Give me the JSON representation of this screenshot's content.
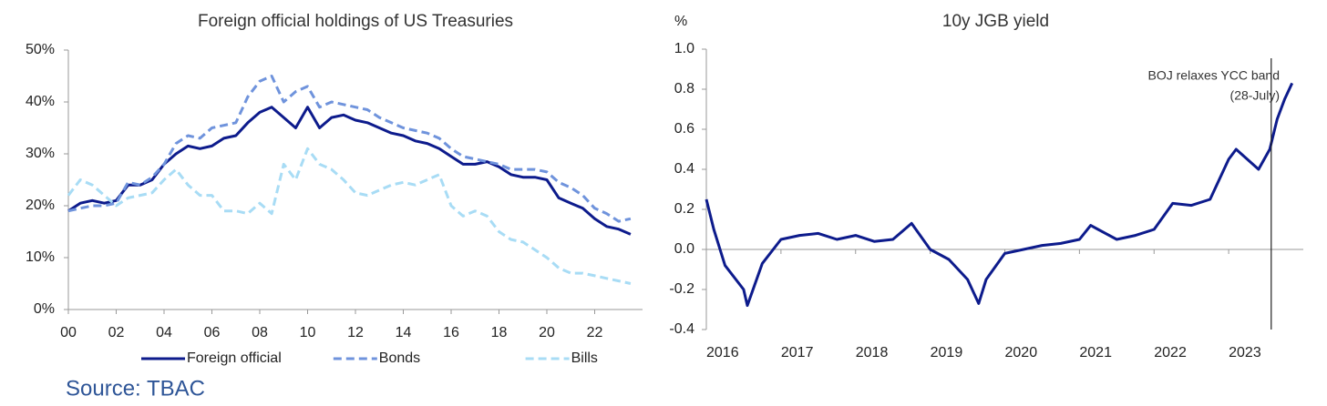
{
  "source": "Source: TBAC",
  "chart_data": [
    {
      "type": "line",
      "title": "Foreign official holdings of US Treasuries",
      "x": [
        0,
        0.5,
        1,
        1.5,
        2,
        2.5,
        3,
        3.5,
        4,
        4.5,
        5,
        5.5,
        6,
        6.5,
        7,
        7.5,
        8,
        8.5,
        9,
        9.5,
        10,
        10.5,
        11,
        11.5,
        12,
        12.5,
        13,
        13.5,
        14,
        14.5,
        15,
        15.5,
        16,
        16.5,
        17,
        17.5,
        18,
        18.5,
        19,
        19.5,
        20,
        20.5,
        21,
        21.5,
        22,
        22.5,
        23,
        23.5
      ],
      "series": [
        {
          "name": "Foreign official",
          "color": "#0d1b8c",
          "dashed": false,
          "values": [
            19,
            20.5,
            21,
            20.5,
            21,
            24,
            24,
            25,
            28,
            30,
            31.5,
            31,
            31.5,
            33,
            33.5,
            36,
            38,
            39,
            37,
            35,
            39,
            35,
            37,
            37.5,
            36.5,
            36,
            35,
            34,
            33.5,
            32.5,
            32,
            31,
            29.5,
            28,
            28,
            28.5,
            27.5,
            26,
            25.5,
            25.5,
            25,
            21.5,
            20.5,
            19.5,
            17.5,
            16,
            15.5,
            14.5
          ]
        },
        {
          "name": "Bonds",
          "color": "#6f93dc",
          "dashed": true,
          "values": [
            19,
            19.5,
            20,
            20,
            20.5,
            24.5,
            24,
            25.5,
            28,
            32,
            33.5,
            33,
            35,
            35.5,
            36,
            41,
            44,
            45,
            40,
            42,
            43,
            39,
            40,
            39.5,
            39,
            38.5,
            37,
            36,
            35,
            34.5,
            34,
            33,
            31,
            29.5,
            29,
            28.5,
            28,
            27,
            27,
            27,
            26.5,
            24.5,
            23.5,
            22,
            19.5,
            18.5,
            17,
            17.5
          ]
        },
        {
          "name": "Bills",
          "color": "#a8dcf5",
          "dashed": true,
          "values": [
            22,
            25,
            24,
            22,
            20,
            21.5,
            22,
            22.5,
            25,
            27,
            24,
            22,
            22,
            19,
            19,
            18.5,
            20.5,
            18.5,
            28,
            25,
            31,
            28,
            27,
            25,
            22.5,
            22,
            23,
            24,
            24.5,
            24,
            25,
            26,
            20,
            18,
            19,
            18,
            15,
            13.5,
            13,
            11.5,
            10,
            8,
            7,
            7,
            6.5,
            6,
            5.5,
            5
          ]
        }
      ],
      "xlim": [
        0,
        24
      ],
      "xticks": [
        {
          "value": 0,
          "label": "00"
        },
        {
          "value": 2,
          "label": "02"
        },
        {
          "value": 4,
          "label": "04"
        },
        {
          "value": 6,
          "label": "06"
        },
        {
          "value": 8,
          "label": "08"
        },
        10,
        12,
        14,
        16,
        18,
        20,
        22
      ],
      "ylim": [
        0,
        50
      ],
      "yticks": [
        {
          "value": 0,
          "label": "0%"
        },
        {
          "value": 10,
          "label": "10%"
        },
        {
          "value": 20,
          "label": "20%"
        },
        {
          "value": 30,
          "label": "30%"
        },
        {
          "value": 40,
          "label": "40%"
        },
        {
          "value": 50,
          "label": "50%"
        }
      ],
      "legend": "bottom"
    },
    {
      "type": "line",
      "title": "10y JGB yield",
      "y_label": "%",
      "x": [
        2016,
        2016.1,
        2016.25,
        2016.5,
        2016.55,
        2016.75,
        2017,
        2017.25,
        2017.5,
        2017.75,
        2018,
        2018.25,
        2018.5,
        2018.75,
        2019,
        2019.25,
        2019.5,
        2019.65,
        2019.75,
        2020,
        2020.25,
        2020.5,
        2020.75,
        2021,
        2021.15,
        2021.25,
        2021.5,
        2021.75,
        2022,
        2022.25,
        2022.5,
        2022.75,
        2023,
        2023.1,
        2023.25,
        2023.4,
        2023.55,
        2023.65,
        2023.75,
        2023.85
      ],
      "values": [
        0.25,
        0.1,
        -0.08,
        -0.2,
        -0.28,
        -0.07,
        0.05,
        0.07,
        0.08,
        0.05,
        0.07,
        0.04,
        0.05,
        0.13,
        0.0,
        -0.05,
        -0.15,
        -0.27,
        -0.15,
        -0.02,
        0.0,
        0.02,
        0.03,
        0.05,
        0.12,
        0.1,
        0.05,
        0.07,
        0.1,
        0.23,
        0.22,
        0.25,
        0.45,
        0.5,
        0.45,
        0.4,
        0.5,
        0.65,
        0.75,
        0.83
      ],
      "color": "#0d1b8c",
      "xlim": [
        2016,
        2024
      ],
      "xticks": [
        2016,
        2017,
        2018,
        2019,
        2020,
        2021,
        2022,
        2023
      ],
      "ylim": [
        -0.4,
        1.0
      ],
      "yticks": [
        -0.4,
        -0.2,
        {
          "value": 0,
          "label": "0.0"
        },
        0.2,
        0.4,
        0.6,
        0.8,
        {
          "value": 1,
          "label": "1.0"
        }
      ],
      "event_x": 2023.57,
      "annotation": [
        "BOJ relaxes YCC band",
        "(28-July)"
      ]
    }
  ]
}
